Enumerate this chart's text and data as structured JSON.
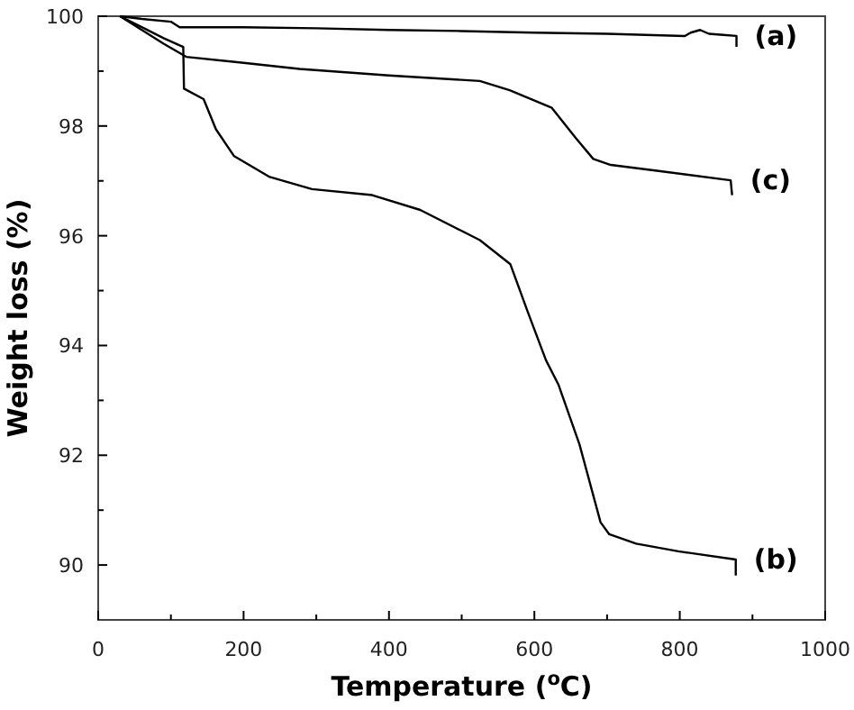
{
  "chart_data": {
    "type": "line",
    "xlabel": "Temperature ($^{o}$C)",
    "ylabel": "Weight loss (%)",
    "xlim": [
      0,
      1000
    ],
    "ylim": [
      89,
      100
    ],
    "xticks": [
      0,
      {
        "value": 100,
        "label": null
      },
      200,
      {
        "value": 300,
        "label": null
      },
      400,
      {
        "value": 500,
        "label": null
      },
      600,
      {
        "value": 700,
        "label": null
      },
      800,
      {
        "value": 900,
        "label": null
      },
      1000
    ],
    "yticks": [
      90,
      {
        "value": 91,
        "label": null
      },
      92,
      {
        "value": 93,
        "label": null
      },
      94,
      {
        "value": 95,
        "label": null
      },
      96,
      {
        "value": 97,
        "label": null
      },
      98,
      {
        "value": 99,
        "label": null
      },
      100
    ],
    "grid": false,
    "marker": "none",
    "line_style": "solid",
    "series": [
      {
        "name": "(a)",
        "color": "#000000",
        "x": [
          30,
          60,
          100,
          112,
          200,
          300,
          400,
          500,
          600,
          700,
          807,
          815,
          828,
          840,
          860,
          878,
          878
        ],
        "values": [
          100,
          99.95,
          99.9,
          99.8,
          99.8,
          99.78,
          99.75,
          99.73,
          99.7,
          99.68,
          99.64,
          99.7,
          99.75,
          99.68,
          99.66,
          99.64,
          99.44
        ]
      },
      {
        "name": "(b)",
        "color": "#000000",
        "x": [
          30,
          60,
          90,
          117,
          118,
          145,
          162,
          187,
          236,
          294,
          377,
          443,
          525,
          567,
          591,
          616,
          633,
          662,
          691,
          703,
          740,
          798,
          877,
          877
        ],
        "values": [
          100,
          99.8,
          99.6,
          99.44,
          98.68,
          98.49,
          97.94,
          97.45,
          97.07,
          96.85,
          96.74,
          96.47,
          95.92,
          95.48,
          94.61,
          93.73,
          93.29,
          92.2,
          90.78,
          90.56,
          90.39,
          90.25,
          90.1,
          89.81
        ]
      },
      {
        "name": "(c)",
        "color": "#000000",
        "x": [
          30,
          60,
          90,
          121,
          200,
          277,
          400,
          525,
          566,
          624,
          657,
          681,
          705,
          771,
          870,
          872
        ],
        "values": [
          100,
          99.75,
          99.5,
          99.26,
          99.15,
          99.04,
          98.92,
          98.82,
          98.65,
          98.33,
          97.78,
          97.4,
          97.29,
          97.18,
          97.01,
          96.74
        ]
      }
    ]
  }
}
